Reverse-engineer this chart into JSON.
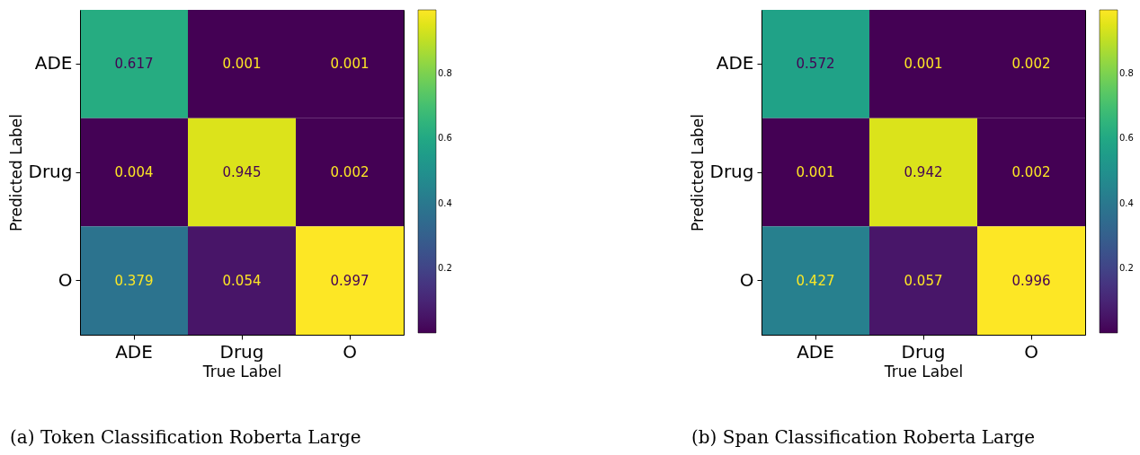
{
  "chart_data": [
    {
      "type": "heatmap",
      "title": "(a) Token Classification Roberta Large",
      "xlabel": "True Label",
      "ylabel": "Predicted Label",
      "categories": [
        "ADE",
        "Drug",
        "O"
      ],
      "y_categories": [
        "ADE",
        "Drug",
        "O"
      ],
      "cells": [
        [
          0.617,
          0.001,
          0.001
        ],
        [
          0.004,
          0.945,
          0.002
        ],
        [
          0.379,
          0.054,
          0.997
        ]
      ],
      "data_labels": true,
      "clim": [
        0.001,
        0.997
      ],
      "cticks": [
        0.2,
        0.4,
        0.6,
        0.8
      ]
    },
    {
      "type": "heatmap",
      "title": "(b) Span Classification Roberta Large",
      "xlabel": "True Label",
      "ylabel": "Predicted Label",
      "categories": [
        "ADE",
        "Drug",
        "O"
      ],
      "y_categories": [
        "ADE",
        "Drug",
        "O"
      ],
      "cells": [
        [
          0.572,
          0.001,
          0.002
        ],
        [
          0.001,
          0.942,
          0.002
        ],
        [
          0.427,
          0.057,
          0.996
        ]
      ],
      "data_labels": true,
      "clim": [
        0.001,
        0.996
      ],
      "cticks": [
        0.2,
        0.4,
        0.6,
        0.8
      ]
    }
  ]
}
